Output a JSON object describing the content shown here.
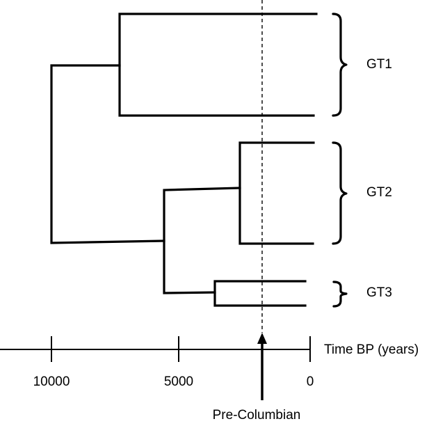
{
  "groups": [
    {
      "id": "gt1",
      "label": "GT1"
    },
    {
      "id": "gt2",
      "label": "GT2"
    },
    {
      "id": "gt3",
      "label": "GT3"
    }
  ],
  "axis": {
    "label": "Time BP (years)",
    "ticks": [
      {
        "value": 10000,
        "label": "10000"
      },
      {
        "value": 5000,
        "label": "5000"
      },
      {
        "value": 0,
        "label": "0"
      }
    ]
  },
  "marker": {
    "label": "Pre-Columbian"
  }
}
